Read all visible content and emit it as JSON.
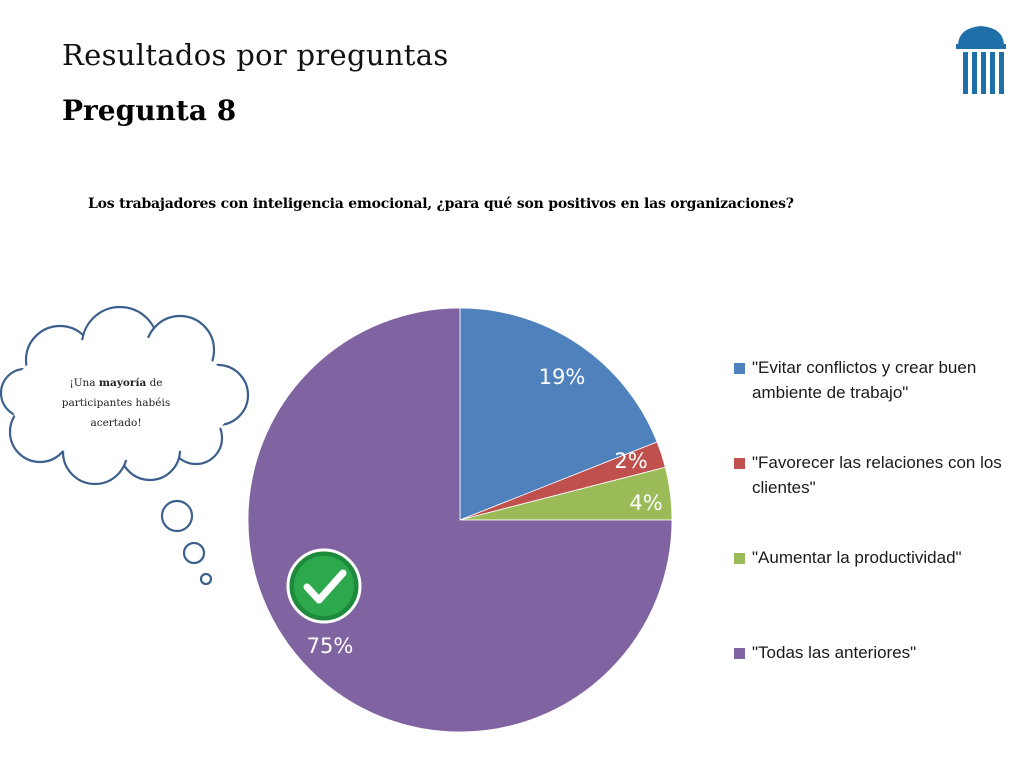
{
  "header": {
    "title": "Resultados por preguntas",
    "subtitle": "Pregunta 8",
    "logo_icon": "column-building-icon"
  },
  "callout": {
    "text_before": "¡Una ",
    "text_bold": "mayoría",
    "text_after": " de participantes habéis acertado!",
    "icon": "thought-cloud-icon"
  },
  "correct_marker_icon": "checkmark-badge-icon",
  "chart_data": {
    "type": "pie",
    "title": "Los trabajadores con inteligencia emocional, ¿para qué son positivos en las organizaciones?",
    "slices": [
      {
        "label": "\"Evitar conflictos y crear buen ambiente de trabajo\"",
        "value": 19,
        "display": "19%",
        "color": "#4F81BD"
      },
      {
        "label": "\"Favorecer las relaciones con los clientes\"",
        "value": 2,
        "display": "2%",
        "color": "#C0504D"
      },
      {
        "label": "\"Aumentar la productividad\"",
        "value": 4,
        "display": "4%",
        "color": "#9BBB59"
      },
      {
        "label": "\"Todas las anteriores\"",
        "value": 75,
        "display": "75%",
        "color": "#8064A2"
      }
    ],
    "legend_position": "right",
    "correct_answer": "\"Todas las anteriores\""
  }
}
